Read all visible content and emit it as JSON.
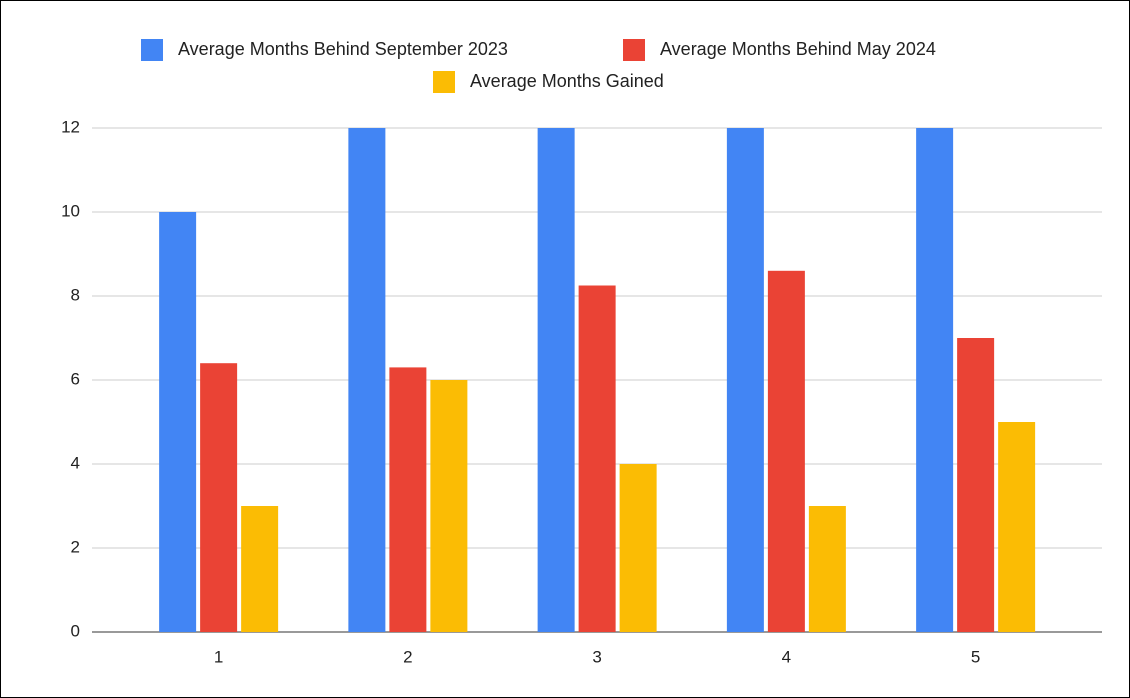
{
  "chart_data": {
    "type": "bar",
    "categories": [
      "1",
      "2",
      "3",
      "4",
      "5"
    ],
    "series": [
      {
        "name": "Average Months Behind September 2023",
        "color": "#4285f4",
        "values": [
          10,
          12,
          12,
          12,
          12
        ]
      },
      {
        "name": "Average Months Behind May 2024",
        "color": "#ea4335",
        "values": [
          6.4,
          6.3,
          8.25,
          8.6,
          7
        ]
      },
      {
        "name": "Average Months Gained",
        "color": "#fbbc04",
        "values": [
          3,
          6,
          4,
          3,
          5
        ]
      }
    ],
    "ylim": [
      0,
      12
    ],
    "yticks": [
      0,
      2,
      4,
      6,
      8,
      10,
      12
    ],
    "grid": true,
    "legend": "top"
  }
}
